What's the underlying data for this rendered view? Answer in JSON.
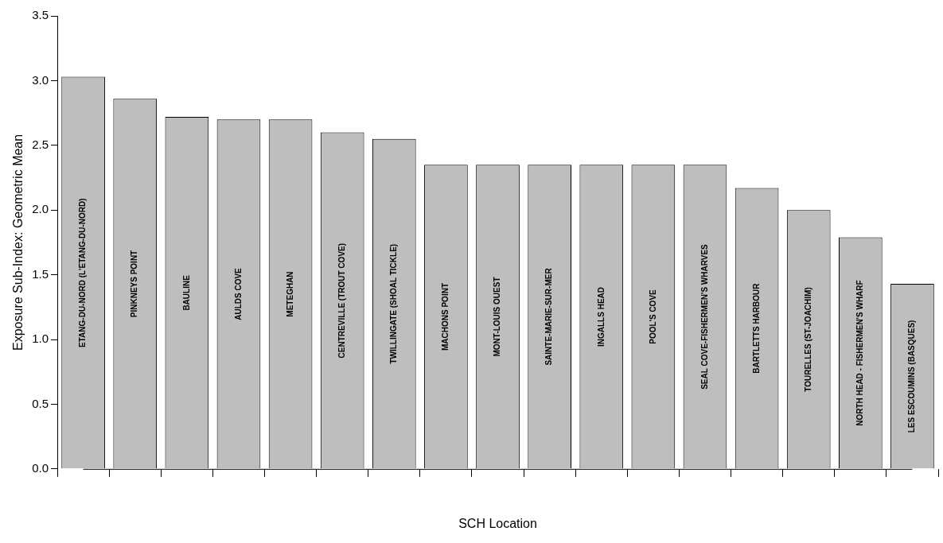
{
  "chart_data": {
    "type": "bar",
    "xlabel": "SCH Location",
    "ylabel": "Exposure Sub-Index: Geometric Mean",
    "categories": [
      "ETANG-DU-NORD (L'ETANG-DU-NORD)",
      "PINKNEYS POINT",
      "BAULINE",
      "AULDS COVE",
      "METEGHAN",
      "CENTREVILLE (TROUT COVE)",
      "TWILLINGATE (SHOAL TICKLE)",
      "MACHONS POINT",
      "MONT-LOUIS OUEST",
      "SAINTE-MARIE-SUR-MER",
      "INGALLS HEAD",
      "POOL'S COVE",
      "SEAL COVE-FISHERMEN'S WHARVES",
      "BARTLETTS HARBOUR",
      "TOURELLES (ST-JOACHIM)",
      "NORTH HEAD - FISHERMEN'S WHARF",
      "LES ESCOUMINS (BASQUES)"
    ],
    "values": [
      3.03,
      2.86,
      2.72,
      2.7,
      2.7,
      2.6,
      2.55,
      2.35,
      2.35,
      2.35,
      2.35,
      2.35,
      2.35,
      2.17,
      2.0,
      1.79,
      1.43
    ],
    "color": "#bebebe",
    "ylim": [
      0,
      3.5
    ],
    "yticks": [
      {
        "value": 0,
        "label": "0.0"
      },
      0.5,
      {
        "value": 1,
        "label": "1.0"
      },
      1.5,
      {
        "value": 2,
        "label": "2.0"
      },
      2.5,
      {
        "value": 3,
        "label": "3.0"
      },
      3.5
    ],
    "grid": false,
    "legend": false
  }
}
